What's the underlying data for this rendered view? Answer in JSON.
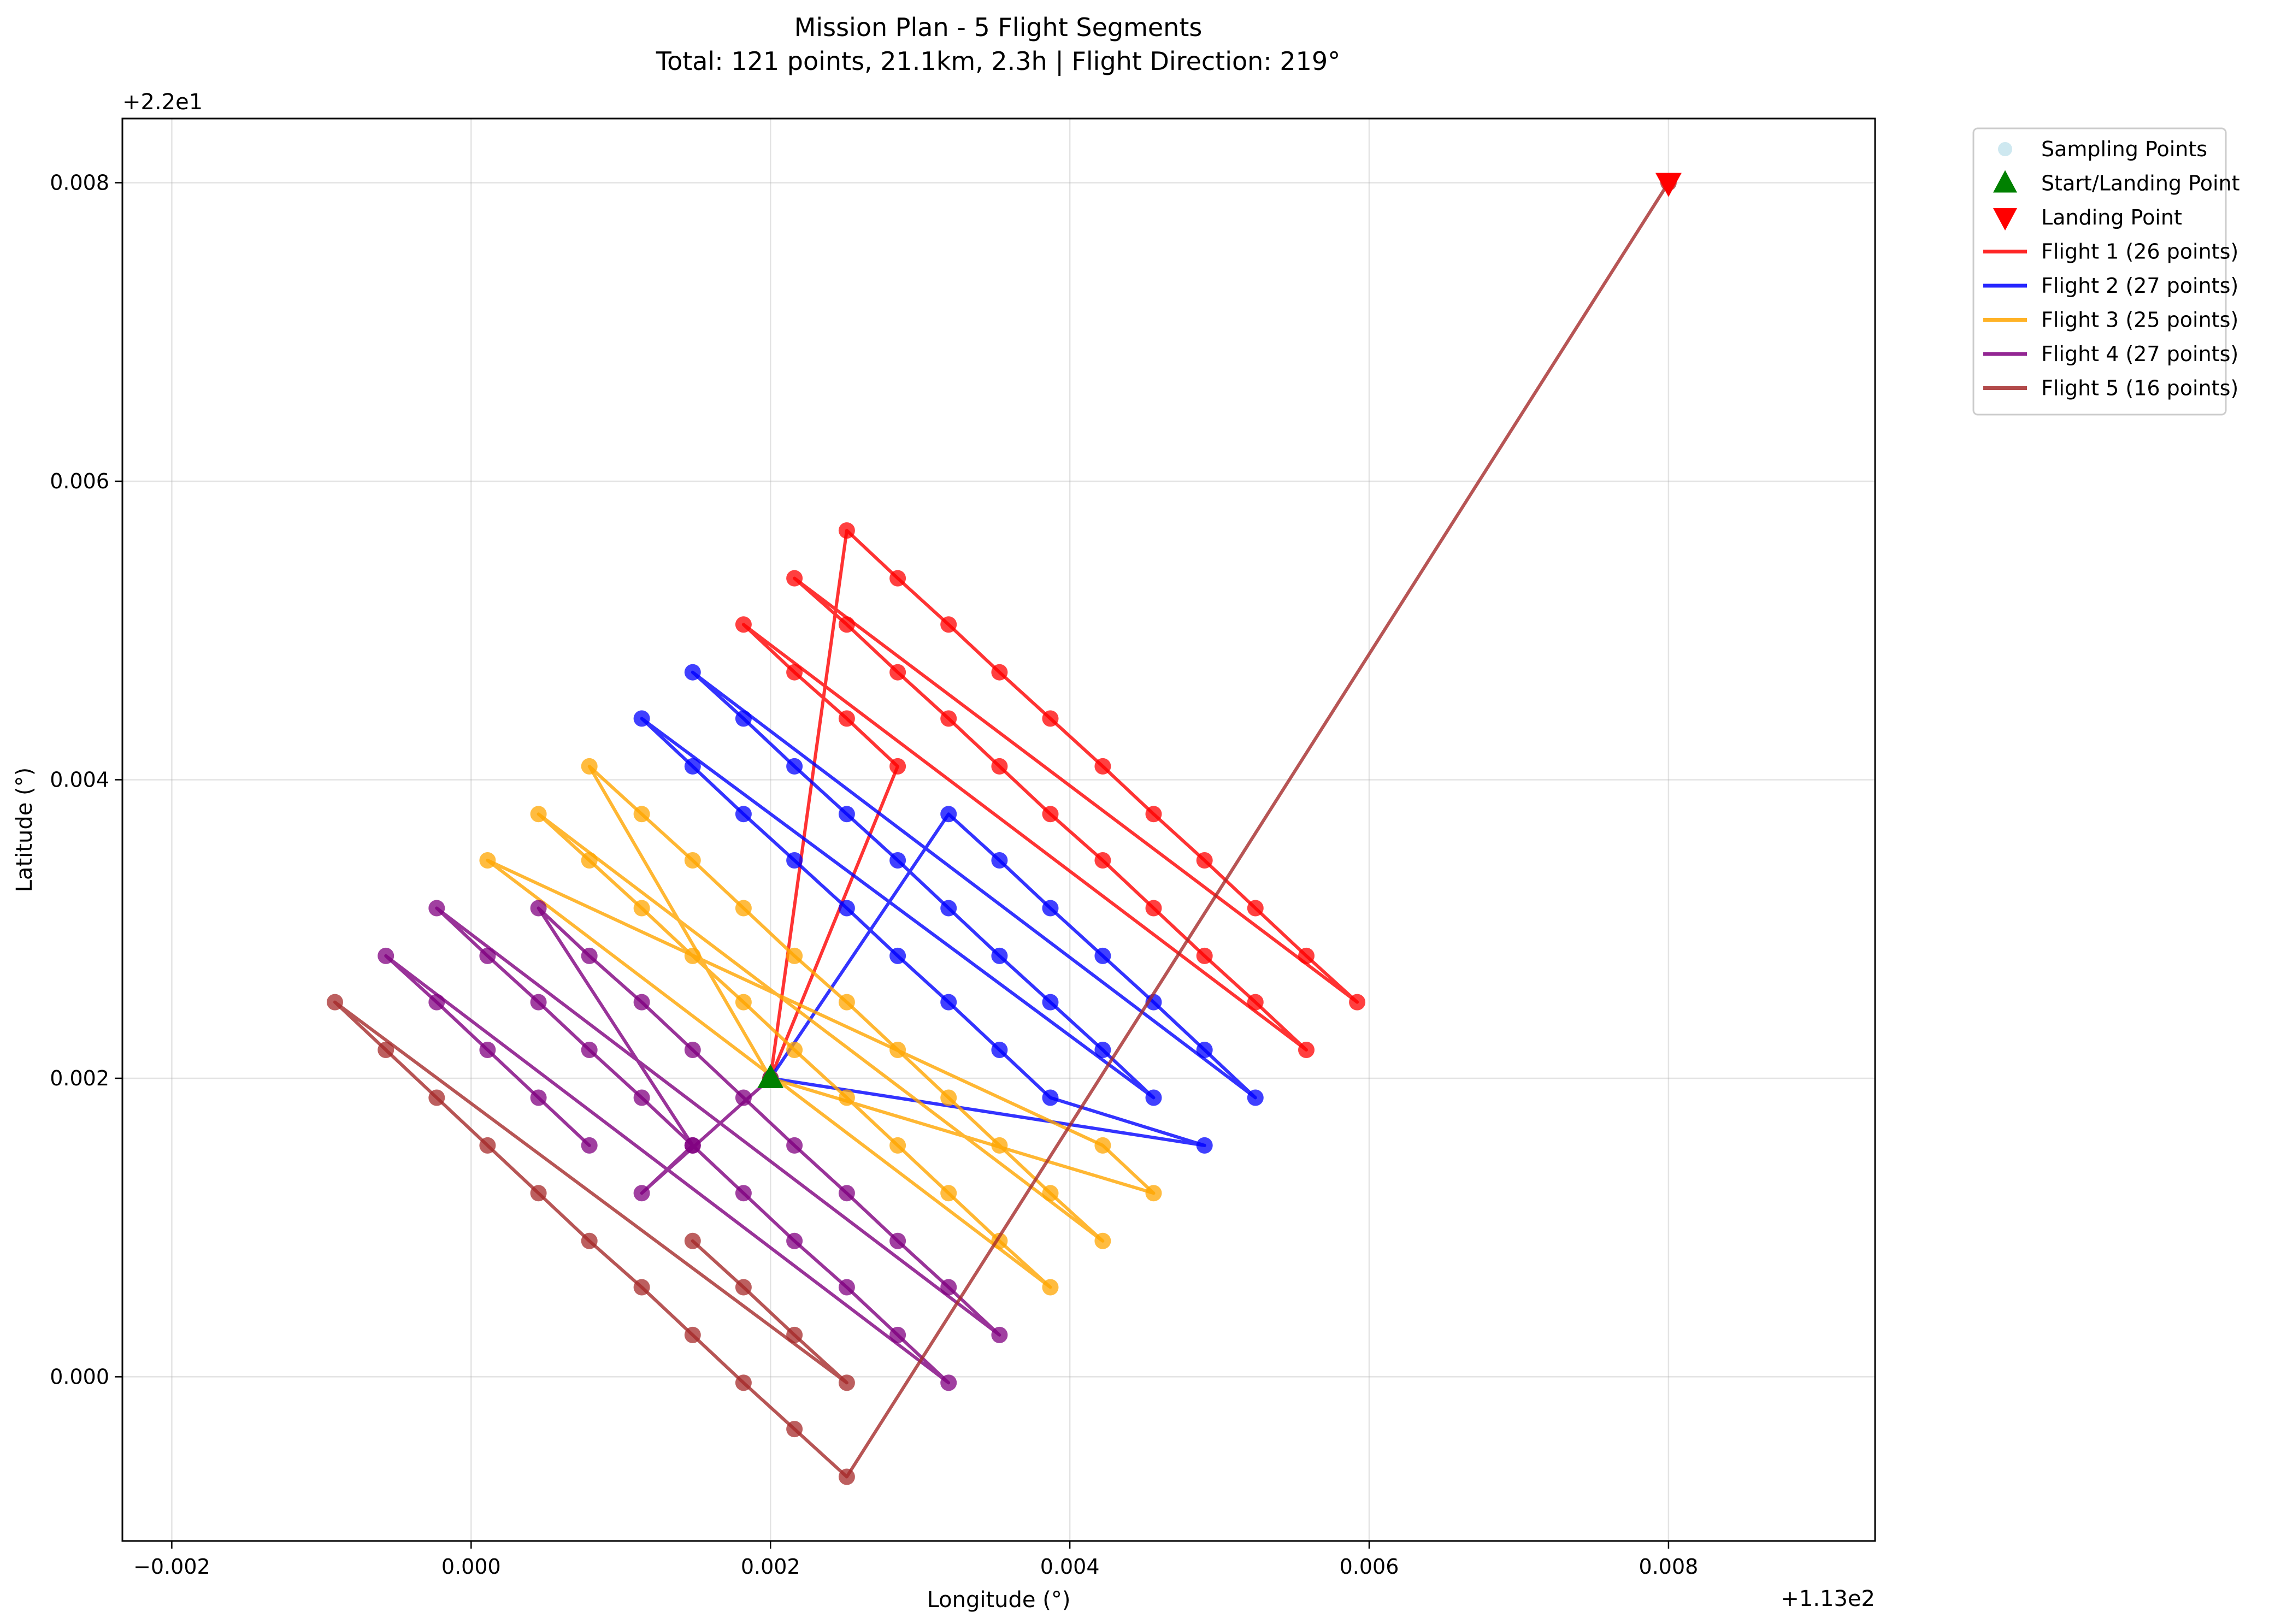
{
  "chart_data": {
    "type": "line",
    "title": "Mission Plan - 5 Flight Segments",
    "subtitle": "Total: 121 points, 21.1km, 2.3h | Flight Direction: 219°",
    "xlabel": "Longitude (°)",
    "ylabel": "Latitude (°)",
    "x_offset_label": "+1.13e2",
    "y_offset_label": "+2.2e1",
    "xlim": [
      -0.00233,
      0.00938
    ],
    "ylim": [
      -0.0011,
      0.00843
    ],
    "x_ticks": [
      -0.002,
      0.0,
      0.002,
      0.004,
      0.006,
      0.008
    ],
    "x_tick_labels": [
      "−0.002",
      "0.000",
      "0.002",
      "0.004",
      "0.006",
      "0.008"
    ],
    "y_ticks": [
      0.0,
      0.002,
      0.004,
      0.006,
      0.008
    ],
    "y_tick_labels": [
      "0.000",
      "0.002",
      "0.004",
      "0.006",
      "0.008"
    ],
    "grid": true,
    "legend_position": "outside-upper-right",
    "legend": [
      {
        "label": "Sampling Points",
        "kind": "dot",
        "color": "#add8e6"
      },
      {
        "label": "Start/Landing Point",
        "kind": "triangle-up",
        "color": "#008000"
      },
      {
        "label": "Landing Point",
        "kind": "triangle-down",
        "color": "#ff0000"
      },
      {
        "label": "Flight 1 (26 points)",
        "kind": "line",
        "color": "#ff0000"
      },
      {
        "label": "Flight 2 (27 points)",
        "kind": "line",
        "color": "#0000ff"
      },
      {
        "label": "Flight 3 (25 points)",
        "kind": "line",
        "color": "#ffa500"
      },
      {
        "label": "Flight 4 (27 points)",
        "kind": "line",
        "color": "#800080"
      },
      {
        "label": "Flight 5 (16 points)",
        "kind": "line",
        "color": "#a52a2a"
      }
    ],
    "start_point": {
      "x": 0.002,
      "y": 0.002,
      "color": "#008000"
    },
    "landing_point": {
      "x": 0.008,
      "y": 0.008,
      "color": "#ff0000"
    },
    "series": [
      {
        "name": "Flight 1 (26 points)",
        "color": "#ff0000",
        "points": [
          [
            0.002,
            0.002
          ],
          [
            0.00251,
            0.00567
          ],
          [
            0.00285,
            0.00535
          ],
          [
            0.00319,
            0.00504
          ],
          [
            0.00353,
            0.00472
          ],
          [
            0.00387,
            0.00441
          ],
          [
            0.00422,
            0.00409
          ],
          [
            0.00456,
            0.00377
          ],
          [
            0.0049,
            0.00346
          ],
          [
            0.00524,
            0.00314
          ],
          [
            0.00558,
            0.00282
          ],
          [
            0.00592,
            0.00251
          ],
          [
            0.00216,
            0.00535
          ],
          [
            0.00251,
            0.00504
          ],
          [
            0.00285,
            0.00472
          ],
          [
            0.00319,
            0.00441
          ],
          [
            0.00353,
            0.00409
          ],
          [
            0.00387,
            0.00377
          ],
          [
            0.00422,
            0.00346
          ],
          [
            0.00456,
            0.00314
          ],
          [
            0.0049,
            0.00282
          ],
          [
            0.00524,
            0.00251
          ],
          [
            0.00558,
            0.00219
          ],
          [
            0.00182,
            0.00504
          ],
          [
            0.00216,
            0.00472
          ],
          [
            0.00251,
            0.00441
          ],
          [
            0.00285,
            0.00409
          ],
          [
            0.002,
            0.002
          ]
        ]
      },
      {
        "name": "Flight 2 (27 points)",
        "color": "#0000ff",
        "points": [
          [
            0.002,
            0.002
          ],
          [
            0.00319,
            0.00377
          ],
          [
            0.00353,
            0.00346
          ],
          [
            0.00387,
            0.00314
          ],
          [
            0.00422,
            0.00282
          ],
          [
            0.00456,
            0.00251
          ],
          [
            0.0049,
            0.00219
          ],
          [
            0.00524,
            0.00187
          ],
          [
            0.00148,
            0.00472
          ],
          [
            0.00182,
            0.00441
          ],
          [
            0.00216,
            0.00409
          ],
          [
            0.00251,
            0.00377
          ],
          [
            0.00285,
            0.00346
          ],
          [
            0.00319,
            0.00314
          ],
          [
            0.00353,
            0.00282
          ],
          [
            0.00387,
            0.00251
          ],
          [
            0.00422,
            0.00219
          ],
          [
            0.00456,
            0.00187
          ],
          [
            0.00114,
            0.00441
          ],
          [
            0.00148,
            0.00409
          ],
          [
            0.00182,
            0.00377
          ],
          [
            0.00216,
            0.00346
          ],
          [
            0.00251,
            0.00314
          ],
          [
            0.00285,
            0.00282
          ],
          [
            0.00319,
            0.00251
          ],
          [
            0.00353,
            0.00219
          ],
          [
            0.00387,
            0.00187
          ],
          [
            0.0049,
            0.00155
          ],
          [
            0.002,
            0.002
          ]
        ]
      },
      {
        "name": "Flight 3 (25 points)",
        "color": "#ffa500",
        "points": [
          [
            0.002,
            0.002
          ],
          [
            0.00079,
            0.00409
          ],
          [
            0.00114,
            0.00377
          ],
          [
            0.00148,
            0.00346
          ],
          [
            0.00182,
            0.00314
          ],
          [
            0.00216,
            0.00282
          ],
          [
            0.00251,
            0.00251
          ],
          [
            0.00285,
            0.00219
          ],
          [
            0.00319,
            0.00187
          ],
          [
            0.00353,
            0.00155
          ],
          [
            0.00387,
            0.00123
          ],
          [
            0.00422,
            0.00091
          ],
          [
            0.00045,
            0.00377
          ],
          [
            0.00079,
            0.00346
          ],
          [
            0.00114,
            0.00314
          ],
          [
            0.00148,
            0.00282
          ],
          [
            0.00182,
            0.00251
          ],
          [
            0.00216,
            0.00219
          ],
          [
            0.00251,
            0.00187
          ],
          [
            0.00285,
            0.00155
          ],
          [
            0.00319,
            0.00123
          ],
          [
            0.00353,
            0.00091
          ],
          [
            0.00387,
            0.0006
          ],
          [
            0.00011,
            0.00346
          ],
          [
            0.00422,
            0.00155
          ],
          [
            0.00456,
            0.00123
          ],
          [
            0.002,
            0.002
          ]
        ]
      },
      {
        "name": "Flight 4 (27 points)",
        "color": "#800080",
        "points": [
          [
            0.002,
            0.002
          ],
          [
            0.00114,
            0.00123
          ],
          [
            0.00148,
            0.00155
          ],
          [
            0.00045,
            0.00314
          ],
          [
            0.00079,
            0.00282
          ],
          [
            0.00114,
            0.00251
          ],
          [
            0.00148,
            0.00219
          ],
          [
            0.00182,
            0.00187
          ],
          [
            0.00216,
            0.00155
          ],
          [
            0.00251,
            0.00123
          ],
          [
            0.00285,
            0.00091
          ],
          [
            0.00319,
            0.0006
          ],
          [
            0.00353,
            0.00028
          ],
          [
            -0.00023,
            0.00314
          ],
          [
            0.00011,
            0.00282
          ],
          [
            0.00045,
            0.00251
          ],
          [
            0.00079,
            0.00219
          ],
          [
            0.00114,
            0.00187
          ],
          [
            0.00148,
            0.00155
          ],
          [
            0.00182,
            0.00123
          ],
          [
            0.00216,
            0.00091
          ],
          [
            0.00251,
            0.0006
          ],
          [
            0.00285,
            0.00028
          ],
          [
            0.00319,
            -4e-05
          ],
          [
            -0.00057,
            0.00282
          ],
          [
            -0.00023,
            0.00251
          ],
          [
            0.00011,
            0.00219
          ],
          [
            0.00045,
            0.00187
          ],
          [
            0.00079,
            0.00155
          ]
        ]
      },
      {
        "name": "Flight 5 (16 points)",
        "color": "#a52a2a",
        "points": [
          [
            0.00148,
            0.00091
          ],
          [
            0.00182,
            0.0006
          ],
          [
            0.00216,
            0.00028
          ],
          [
            0.00251,
            -4e-05
          ],
          [
            -0.00091,
            0.00251
          ],
          [
            -0.00057,
            0.00219
          ],
          [
            -0.00023,
            0.00187
          ],
          [
            0.00011,
            0.00155
          ],
          [
            0.00045,
            0.00123
          ],
          [
            0.00079,
            0.00091
          ],
          [
            0.00114,
            0.0006
          ],
          [
            0.00148,
            0.00028
          ],
          [
            0.00182,
            -4e-05
          ],
          [
            0.00216,
            -0.00035
          ],
          [
            0.00251,
            -0.00067
          ],
          [
            0.008,
            0.008
          ]
        ]
      }
    ]
  }
}
